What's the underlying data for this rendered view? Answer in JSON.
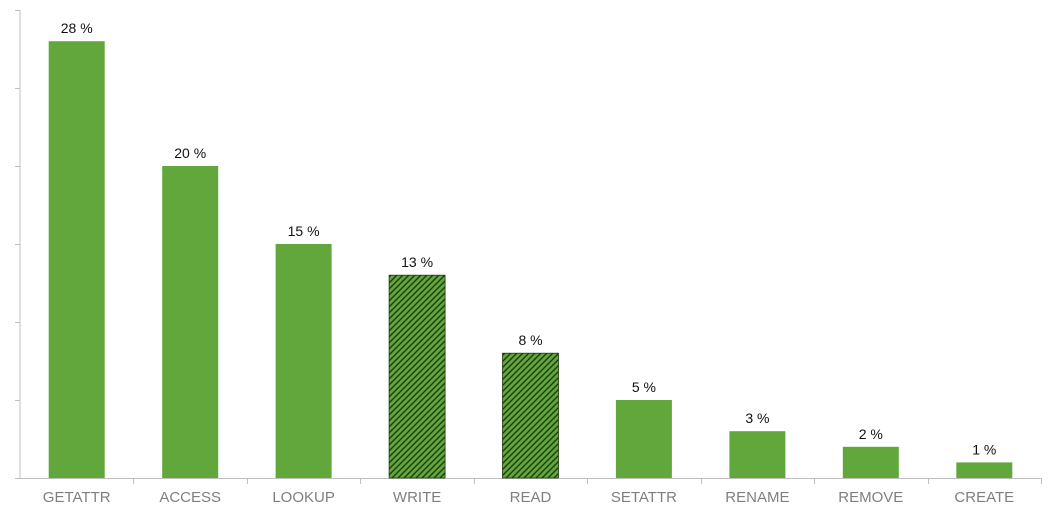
{
  "chart_data": {
    "type": "bar",
    "categories": [
      "GETATTR",
      "ACCESS",
      "LOOKUP",
      "WRITE",
      "READ",
      "SETATTR",
      "RENAME",
      "REMOVE",
      "CREATE"
    ],
    "values": [
      28,
      20,
      15,
      13,
      8,
      5,
      3,
      2,
      1
    ],
    "data_labels": [
      "28 %",
      "20 %",
      "15 %",
      "13 %",
      "8 %",
      "5 %",
      "3 %",
      "2 %",
      "1 %"
    ],
    "hatched_categories": [
      "WRITE",
      "READ"
    ],
    "ylim": [
      0,
      30
    ],
    "y_tick_step": 5,
    "y_tick_labels_shown": false,
    "grid": false,
    "legend": "none",
    "title": "",
    "xlabel": "",
    "ylabel": "",
    "colors": {
      "bar": "#62a73b",
      "hatch_line": "#1d3a12",
      "axis": "#bfbfbf",
      "tick_text": "#7f7f7f",
      "label_text": "#111111"
    }
  }
}
